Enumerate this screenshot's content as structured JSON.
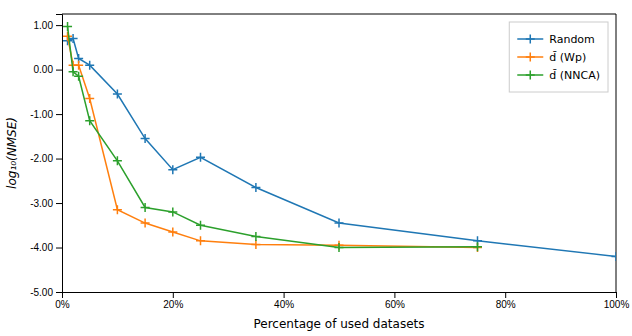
{
  "chart_data": {
    "type": "line",
    "title": "",
    "xlabel": "Percentage of used datasets",
    "ylabel": "log₁₀(NMSE)",
    "xlim": [
      0,
      100
    ],
    "ylim": [
      -5.0,
      1.25
    ],
    "xticks": [
      {
        "value": 0,
        "label": "0%"
      },
      {
        "value": 20,
        "label": "20%"
      },
      {
        "value": 40,
        "label": "40%"
      },
      {
        "value": 60,
        "label": "60%"
      },
      {
        "value": 80,
        "label": "80%"
      },
      {
        "value": 100,
        "label": "100%"
      }
    ],
    "yticks": [
      {
        "value": 1.0,
        "label": "1.00"
      },
      {
        "value": 0.0,
        "label": "0.00"
      },
      {
        "value": -1.0,
        "label": "-1.00"
      },
      {
        "value": -2.0,
        "label": "-2.00"
      },
      {
        "value": -3.0,
        "label": "-3.00"
      },
      {
        "value": -4.0,
        "label": "-4.00"
      },
      {
        "value": -5.0,
        "label": "-5.00"
      }
    ],
    "grid": false,
    "legend": "upper right",
    "series": [
      {
        "name": "Random",
        "color": "#1f77b4",
        "marker": "plus",
        "x": [
          1,
          2,
          3,
          5,
          10,
          15,
          20,
          25,
          35,
          50,
          75,
          100
        ],
        "values": [
          0.65,
          0.7,
          0.25,
          0.1,
          -0.55,
          -1.55,
          -2.25,
          -1.97,
          -2.65,
          -3.45,
          -3.85,
          -4.2
        ]
      },
      {
        "name": "d̄ (Wp)",
        "color": "#ff7f0e",
        "marker": "plus",
        "x": [
          1,
          2,
          3,
          5,
          10,
          15,
          20,
          25,
          35,
          50,
          75
        ],
        "values": [
          0.75,
          0.1,
          0.1,
          -0.65,
          -3.15,
          -3.45,
          -3.65,
          -3.85,
          -3.93,
          -3.95,
          -4.0
        ]
      },
      {
        "name": "d̄ (NNCA)",
        "color": "#2ca02c",
        "marker": "plus",
        "x": [
          1,
          2,
          3,
          5,
          10,
          15,
          20,
          25,
          35,
          50,
          75
        ],
        "values": [
          0.97,
          -0.05,
          -0.15,
          -1.15,
          -2.05,
          -3.1,
          -3.2,
          -3.5,
          -3.75,
          -4.0,
          -3.98
        ]
      }
    ]
  }
}
